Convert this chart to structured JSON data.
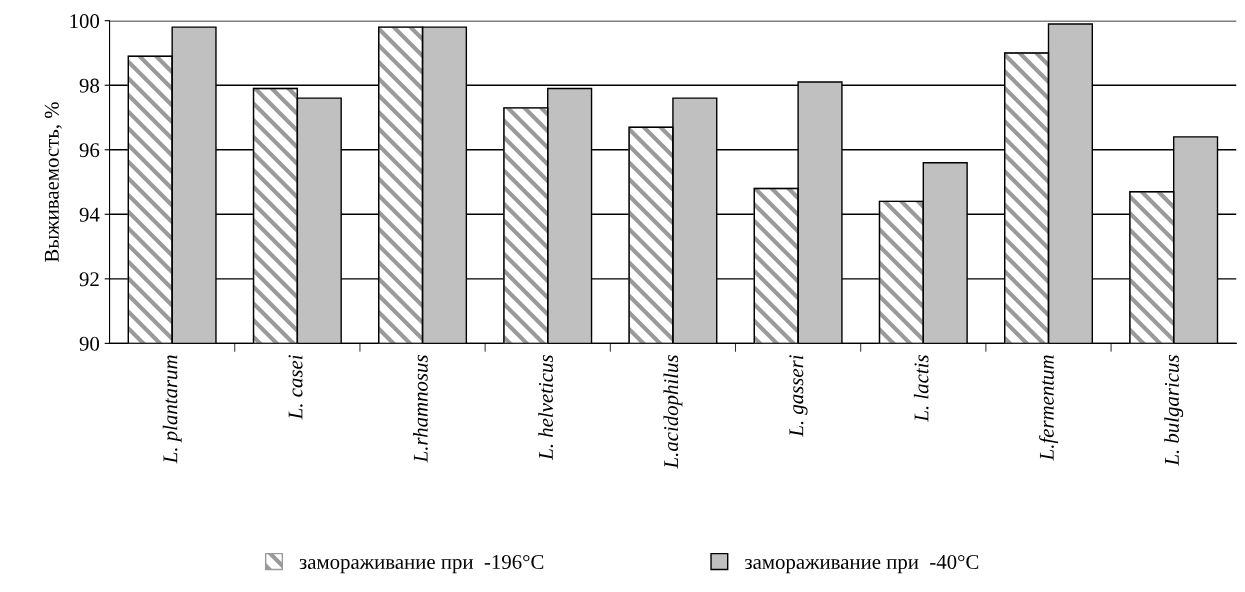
{
  "chart_data": {
    "type": "bar",
    "ylabel": "Выживаемость, %",
    "categories": [
      "L. plantarum",
      "L. casei",
      "L.rhamnosus",
      "L. helveticus",
      "L.acidophilus",
      "L. gasseri",
      "L. lactis",
      "L.fermentum",
      "L. bulgaricus"
    ],
    "series": [
      {
        "name": "замораживание при  -196°C",
        "color": "#9a9a9a",
        "values": [
          98.9,
          97.9,
          99.8,
          97.3,
          96.7,
          94.8,
          94.4,
          99.0,
          94.7
        ]
      },
      {
        "name": "замораживание при  -40°C",
        "color": "#c0c0c0",
        "values": [
          99.8,
          97.6,
          99.8,
          97.9,
          97.6,
          98.1,
          95.6,
          99.9,
          96.4
        ]
      }
    ],
    "ylim": [
      90,
      100
    ],
    "yticks": [
      90,
      92,
      94,
      96,
      98,
      100
    ],
    "grid": "y",
    "legend": "bottom"
  }
}
